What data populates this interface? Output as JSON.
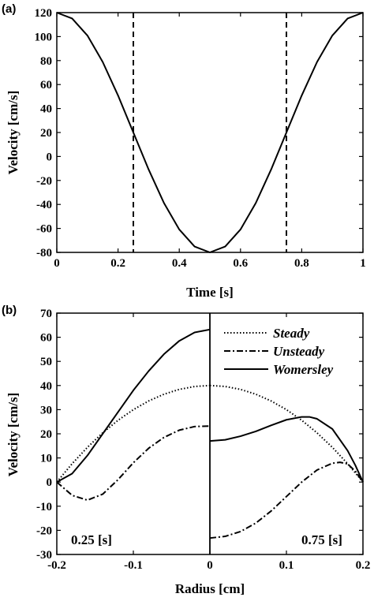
{
  "chart_data": [
    {
      "panel": "(a)",
      "type": "line",
      "xlabel": "Time [s]",
      "ylabel": "Velocity [cm/s]",
      "xlim": [
        0,
        1
      ],
      "ylim": [
        -80,
        120
      ],
      "xticks": [
        "0",
        "0.2",
        "0.4",
        "0.6",
        "0.8",
        "1"
      ],
      "yticks": [
        "-80",
        "-60",
        "-40",
        "-20",
        "0",
        "20",
        "40",
        "60",
        "80",
        "100",
        "120"
      ],
      "grid": false,
      "series": [
        {
          "style": "solid",
          "x": [
            0,
            0.05,
            0.1,
            0.15,
            0.2,
            0.25,
            0.3,
            0.35,
            0.4,
            0.45,
            0.5,
            0.55,
            0.6,
            0.65,
            0.7,
            0.75,
            0.8,
            0.85,
            0.9,
            0.95,
            1
          ],
          "y": [
            120,
            115.1,
            100.9,
            78.8,
            50.9,
            20,
            -10.9,
            -38.8,
            -60.9,
            -75.1,
            -80,
            -75.1,
            -60.9,
            -38.8,
            -10.9,
            20,
            50.9,
            78.8,
            100.9,
            115.1,
            120
          ]
        }
      ],
      "vlines": [
        0.25,
        0.75
      ]
    },
    {
      "panel": "(b)",
      "type": "line",
      "xlabel": "Radius [cm]",
      "ylabel": "Velocity [cm/s]",
      "xlim": [
        -0.2,
        0.2
      ],
      "ylim": [
        -30,
        70
      ],
      "xticks": [
        "-0.2",
        "-0.1",
        "0",
        "0.1",
        "0.2"
      ],
      "yticks": [
        "-30",
        "-20",
        "-10",
        "0",
        "10",
        "20",
        "30",
        "40",
        "50",
        "60",
        "70"
      ],
      "grid": false,
      "legend_position": "top-right",
      "annotations": [
        "0.25 [s]",
        "0.75 [s]"
      ],
      "series": [
        {
          "name": "Steady",
          "style": "dotted",
          "x": [
            -0.2,
            -0.18,
            -0.16,
            -0.14,
            -0.12,
            -0.1,
            -0.08,
            -0.06,
            -0.04,
            -0.02,
            0
          ],
          "y": [
            0,
            7.6,
            14.4,
            20.4,
            25.6,
            30,
            33.6,
            36.4,
            38.4,
            39.6,
            40
          ]
        },
        {
          "name": "Unsteady",
          "style": "dashdot",
          "x": [
            -0.2,
            -0.18,
            -0.16,
            -0.14,
            -0.12,
            -0.1,
            -0.08,
            -0.06,
            -0.04,
            -0.02,
            0
          ],
          "y": [
            0,
            -5.5,
            -7.5,
            -5,
            1,
            8,
            14,
            18.5,
            21.5,
            23,
            23.2
          ]
        },
        {
          "name": "Womersley",
          "style": "solid",
          "x": [
            -0.2,
            -0.18,
            -0.16,
            -0.14,
            -0.12,
            -0.1,
            -0.08,
            -0.06,
            -0.04,
            -0.02,
            0
          ],
          "y": [
            0,
            3.5,
            11,
            20,
            29,
            38,
            46,
            53,
            58.5,
            62,
            63.2
          ]
        },
        {
          "name": "Steady",
          "style": "dotted",
          "x": [
            0,
            0.02,
            0.04,
            0.06,
            0.08,
            0.1,
            0.12,
            0.14,
            0.16,
            0.18,
            0.2
          ],
          "y": [
            40,
            39.6,
            38.4,
            36.4,
            33.6,
            30,
            25.6,
            20.4,
            14.4,
            7.6,
            0
          ]
        },
        {
          "name": "Unsteady",
          "style": "dashdot",
          "x": [
            0,
            0.02,
            0.04,
            0.06,
            0.08,
            0.1,
            0.12,
            0.14,
            0.16,
            0.17,
            0.18,
            0.19,
            0.2
          ],
          "y": [
            -23.2,
            -22.5,
            -20.5,
            -17,
            -12,
            -6,
            0,
            5,
            7.8,
            8.2,
            7.5,
            4.5,
            0
          ]
        },
        {
          "name": "Womersley",
          "style": "solid",
          "x": [
            0,
            0.02,
            0.04,
            0.06,
            0.08,
            0.1,
            0.12,
            0.13,
            0.14,
            0.16,
            0.18,
            0.19,
            0.2
          ],
          "y": [
            17,
            17.5,
            19,
            21,
            23.5,
            25.8,
            27,
            27,
            26.2,
            22,
            13,
            7,
            0
          ]
        }
      ]
    }
  ]
}
